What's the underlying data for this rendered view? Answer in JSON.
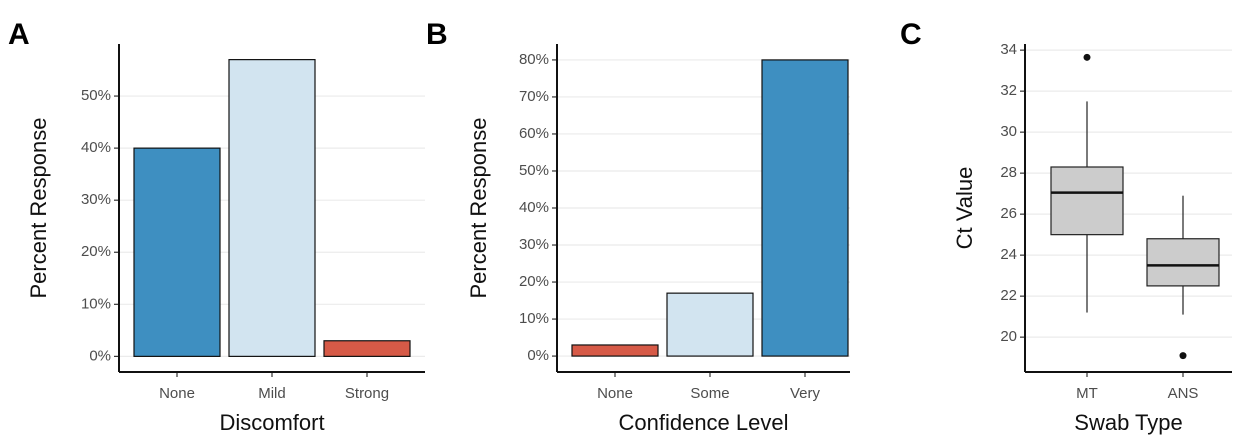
{
  "chart_data": [
    {
      "type": "bar",
      "panel_label": "A",
      "x_label": "Discomfort",
      "y_label": "Percent Response",
      "categories": [
        "None",
        "Mild",
        "Strong"
      ],
      "values": [
        40,
        57,
        3
      ],
      "colors": [
        "#3e8fc1",
        "#d2e4f0",
        "#d65a47"
      ],
      "ylim": [
        -3,
        60
      ],
      "yticks": [
        {
          "value": 0,
          "label": "0%"
        },
        {
          "value": 10,
          "label": "10%"
        },
        {
          "value": 20,
          "label": "20%"
        },
        {
          "value": 30,
          "label": "30%"
        },
        {
          "value": 40,
          "label": "40%"
        },
        {
          "value": 50,
          "label": "50%"
        }
      ],
      "grid": true
    },
    {
      "type": "bar",
      "panel_label": "B",
      "x_label": "Confidence Level",
      "y_label": "Percent Response",
      "categories": [
        "None",
        "Some",
        "Very"
      ],
      "values": [
        3,
        17,
        80
      ],
      "colors": [
        "#d65a47",
        "#d2e4f0",
        "#3e8fc1"
      ],
      "ylim": [
        -4.3,
        84.3
      ],
      "yticks": [
        {
          "value": 0,
          "label": "0%"
        },
        {
          "value": 10,
          "label": "10%"
        },
        {
          "value": 20,
          "label": "20%"
        },
        {
          "value": 30,
          "label": "30%"
        },
        {
          "value": 40,
          "label": "40%"
        },
        {
          "value": 50,
          "label": "50%"
        },
        {
          "value": 60,
          "label": "60%"
        },
        {
          "value": 70,
          "label": "70%"
        },
        {
          "value": 80,
          "label": "80%"
        }
      ],
      "grid": true
    },
    {
      "type": "box",
      "panel_label": "C",
      "x_label": "Swab Type",
      "y_label": "Ct Value",
      "categories": [
        "MT",
        "ANS"
      ],
      "color": "#cccccc",
      "boxes": [
        {
          "whislo": 21.2,
          "q1": 25.0,
          "med": 27.05,
          "q3": 28.3,
          "whishi": 31.5,
          "fliers": [
            33.65
          ]
        },
        {
          "whislo": 21.1,
          "q1": 22.5,
          "med": 23.5,
          "q3": 24.8,
          "whishi": 26.9,
          "fliers": [
            19.1
          ]
        }
      ],
      "ylim": [
        18.3,
        34.3
      ],
      "yticks": [
        20,
        22,
        24,
        26,
        28,
        30,
        32,
        34
      ],
      "grid": true
    }
  ]
}
